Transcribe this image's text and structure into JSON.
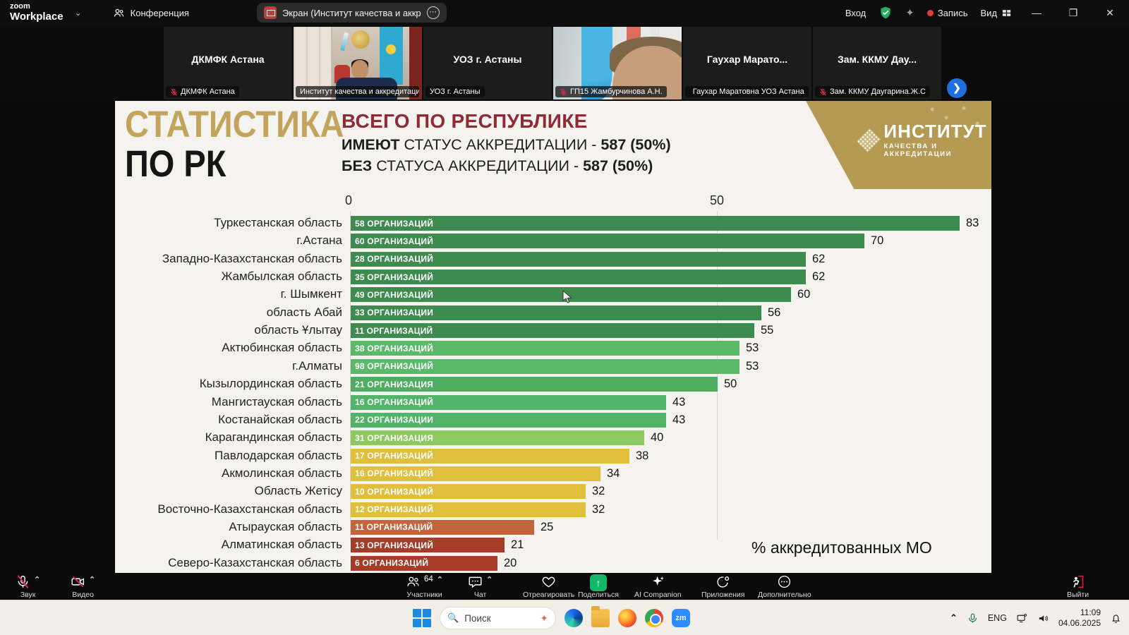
{
  "title_bar": {
    "logo_line1": "zoom",
    "logo_line2": "Workplace",
    "conference_label": "Конференция",
    "screen_tab_label": "Экран (Институт качества и аккр",
    "sign_in": "Вход",
    "record_label": "Запись",
    "view_label": "Вид"
  },
  "video_strip": {
    "tiles": [
      {
        "type": "dark",
        "center_name": "ДКМФК Астана",
        "label": "ДКМФК Астана",
        "muted": true,
        "active": false
      },
      {
        "type": "office",
        "center_name": "",
        "label": "Институт качества и аккредитации",
        "muted": false,
        "active": true
      },
      {
        "type": "dark",
        "center_name": "УОЗ г. Астаны",
        "label": "УОЗ г. Астаны",
        "muted": false,
        "active": false
      },
      {
        "type": "person",
        "center_name": "",
        "label": "ГП15 Жамбурчинова А.Н.",
        "muted": true,
        "active": false
      },
      {
        "type": "dark",
        "center_name": "Гаухар Марато...",
        "label": "Гаухар Маратовна УОЗ Астана",
        "muted": true,
        "active": false
      },
      {
        "type": "dark",
        "center_name": "Зам. ККМУ Дау...",
        "label": "Зам. ККМУ Даугарина.Ж.С",
        "muted": true,
        "active": false
      }
    ],
    "next_arrow": "›"
  },
  "slide": {
    "title_line1": "СТАТИСТИКА",
    "title_line2": "ПО РК",
    "header_title": "ВСЕГО ПО РЕСПУБЛИКЕ",
    "have_bold": "ИМЕЮТ",
    "have_rest": " СТАТУС АККРЕДИТАЦИИ - ",
    "have_value": "587 (50%)",
    "without_bold": "БЕЗ",
    "without_rest": " СТАТУСА АККРЕДИТАЦИИ - ",
    "without_value": "587 (50%)",
    "logo_title": "ИНСТИТУТ",
    "logo_subtitle": "КАЧЕСТВА И АККРЕДИТАЦИИ",
    "footnote": "% аккредитованных МО",
    "accent_gold": "#b49a52",
    "accent_red": "#8e2b35"
  },
  "chart_data": {
    "type": "bar",
    "orientation": "horizontal",
    "title": "% аккредитованных МО по регионам РК",
    "xlabel": "% аккредитованных МО",
    "x_ticks": [
      0,
      50
    ],
    "xlim": [
      0,
      87
    ],
    "grid": true,
    "rows": [
      {
        "label": "Туркестанская область",
        "orgs": "58 ОРГАНИЗАЦИЙ",
        "value": 83,
        "color": "#3e8b4f"
      },
      {
        "label": "г.Астана",
        "orgs": "60 ОРГАНИЗАЦИЙ",
        "value": 70,
        "color": "#3e8b4f"
      },
      {
        "label": "Западно-Казахстанская область",
        "orgs": "28 ОРГАНИЗАЦИЙ",
        "value": 62,
        "color": "#3e8b4f"
      },
      {
        "label": "Жамбылская область",
        "orgs": "35 ОРГАНИЗАЦИЙ",
        "value": 62,
        "color": "#3e8b4f"
      },
      {
        "label": "г. Шымкент",
        "orgs": "49 ОРГАНИЗАЦИЙ",
        "value": 60,
        "color": "#3e8b4f"
      },
      {
        "label": "область Абай",
        "orgs": "33 ОРГАНИЗАЦИИ",
        "value": 56,
        "color": "#3e8b4f"
      },
      {
        "label": "область Ұлытау",
        "orgs": "11 ОРГАНИЗАЦИЙ",
        "value": 55,
        "color": "#3e8b4f"
      },
      {
        "label": "Актюбинская область",
        "orgs": "38 ОРГАНИЗАЦИЙ",
        "value": 53,
        "color": "#5bb96a"
      },
      {
        "label": "г.Алматы",
        "orgs": "98 ОРГАНИЗАЦИЙ",
        "value": 53,
        "color": "#5bb96a"
      },
      {
        "label": "Кызылординская область",
        "orgs": "21 ОРГАНИЗАЦИЯ",
        "value": 50,
        "color": "#4ead60"
      },
      {
        "label": "Мангистауская область",
        "orgs": "16 ОРГАНИЗАЦИЙ",
        "value": 43,
        "color": "#52b468"
      },
      {
        "label": "Костанайская область",
        "orgs": "22 ОРГАНИЗАЦИИ",
        "value": 43,
        "color": "#52b468"
      },
      {
        "label": "Карагандинская область",
        "orgs": "31 ОРГАНИЗАЦИЯ",
        "value": 40,
        "color": "#8cc95e"
      },
      {
        "label": "Павлодарская область",
        "orgs": "17 ОРГАНИЗАЦИЙ",
        "value": 38,
        "color": "#e0bf3d"
      },
      {
        "label": "Акмолинская область",
        "orgs": "16 ОРГАНИЗАЦИЙ",
        "value": 34,
        "color": "#e0bf3d"
      },
      {
        "label": "Область Жетісу",
        "orgs": "10 ОРГАНИЗАЦИЙ",
        "value": 32,
        "color": "#e0bf3d"
      },
      {
        "label": "Восточно-Казахстанская область",
        "orgs": "12 ОРГАНИЗАЦИЙ",
        "value": 32,
        "color": "#e0bf3d"
      },
      {
        "label": "Атырауская область",
        "orgs": "11 ОРГАНИЗАЦИЙ",
        "value": 25,
        "color": "#c2653c"
      },
      {
        "label": "Алматинская область",
        "orgs": "13 ОРГАНИЗАЦИЙ",
        "value": 21,
        "color": "#a63b2a"
      },
      {
        "label": "Северо-Казахстанская область",
        "orgs": "6 ОРГАНИЗАЦИЙ",
        "value": 20,
        "color": "#a63b2a"
      }
    ]
  },
  "toolbar": {
    "left": [
      {
        "icon": "mic-muted",
        "label": "Звук",
        "chevron": true
      },
      {
        "icon": "video-muted",
        "label": "Видео",
        "chevron": true
      }
    ],
    "center": [
      {
        "icon": "participants",
        "label": "Участники",
        "badge": "64",
        "chevron": true
      },
      {
        "icon": "chat",
        "label": "Чат",
        "chevron": true
      },
      {
        "icon": "react",
        "label": "Отреагировать"
      },
      {
        "icon": "share",
        "label": "Поделиться"
      },
      {
        "icon": "ai",
        "label": "AI Companion"
      },
      {
        "icon": "apps",
        "label": "Приложения"
      },
      {
        "icon": "more",
        "label": "Дополнительно"
      }
    ],
    "right": [
      {
        "icon": "leave",
        "label": "Выйти"
      }
    ]
  },
  "taskbar": {
    "search_placeholder": "Поиск",
    "language": "ENG",
    "time": "11:09",
    "date": "04.06.2025"
  }
}
